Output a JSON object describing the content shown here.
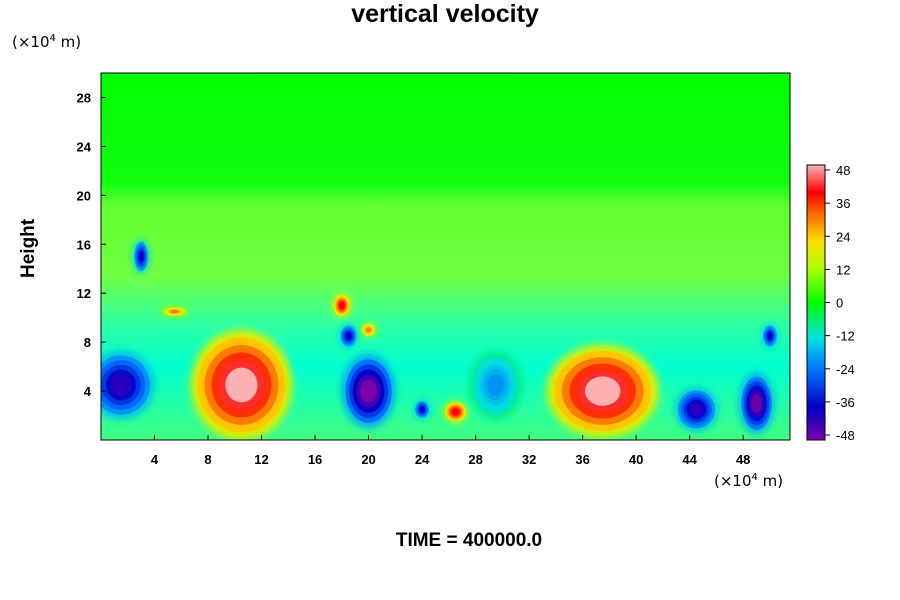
{
  "chart_data": {
    "type": "heatmap",
    "title": "vertical velocity",
    "ylabel": "Height",
    "xunits_prefix": "(×10",
    "xunits_exp": "4",
    "xunits_suffix": " m)",
    "yunits_prefix": "(×10",
    "yunits_exp": "4",
    "yunits_suffix": " m)",
    "footer": "TIME = 400000.0",
    "xlim": [
      0,
      51.5
    ],
    "ylim": [
      0,
      30
    ],
    "xticks": [
      4,
      8,
      12,
      16,
      20,
      24,
      28,
      32,
      36,
      40,
      44,
      48
    ],
    "yticks": [
      4,
      8,
      12,
      16,
      20,
      24,
      28
    ],
    "colorbar": {
      "range": [
        -48,
        48
      ],
      "ticks": [
        48,
        36,
        24,
        12,
        0,
        -12,
        -24,
        -36,
        -48
      ]
    },
    "features": [
      {
        "x": 10.5,
        "y": 4.5,
        "rx": 3.8,
        "ry": 4.5,
        "value": 48
      },
      {
        "x": 37.5,
        "y": 4.0,
        "rx": 4.2,
        "ry": 3.8,
        "value": 48
      },
      {
        "x": 26.5,
        "y": 2.3,
        "rx": 0.9,
        "ry": 0.9,
        "value": 40
      },
      {
        "x": 18.0,
        "y": 11.0,
        "rx": 0.7,
        "ry": 1.0,
        "value": 40
      },
      {
        "x": 20.0,
        "y": 9.0,
        "rx": 0.6,
        "ry": 0.6,
        "value": 30
      },
      {
        "x": 5.5,
        "y": 10.5,
        "rx": 1.0,
        "ry": 0.4,
        "value": 30
      },
      {
        "x": 20.0,
        "y": 4.0,
        "rx": 2.0,
        "ry": 3.0,
        "value": -48
      },
      {
        "x": 1.5,
        "y": 4.5,
        "rx": 2.5,
        "ry": 2.8,
        "value": -40
      },
      {
        "x": 44.5,
        "y": 2.5,
        "rx": 1.6,
        "ry": 1.8,
        "value": -40
      },
      {
        "x": 49.0,
        "y": 3.0,
        "rx": 1.3,
        "ry": 2.5,
        "value": -46
      },
      {
        "x": 3.0,
        "y": 15.0,
        "rx": 0.6,
        "ry": 1.4,
        "value": -36
      },
      {
        "x": 18.5,
        "y": 8.5,
        "rx": 0.7,
        "ry": 1.0,
        "value": -36
      },
      {
        "x": 50.0,
        "y": 8.5,
        "rx": 0.6,
        "ry": 1.0,
        "value": -36
      },
      {
        "x": 29.5,
        "y": 4.5,
        "rx": 2.0,
        "ry": 2.8,
        "value": -20
      },
      {
        "x": 24.0,
        "y": 2.5,
        "rx": 0.6,
        "ry": 0.8,
        "value": -36
      }
    ]
  }
}
